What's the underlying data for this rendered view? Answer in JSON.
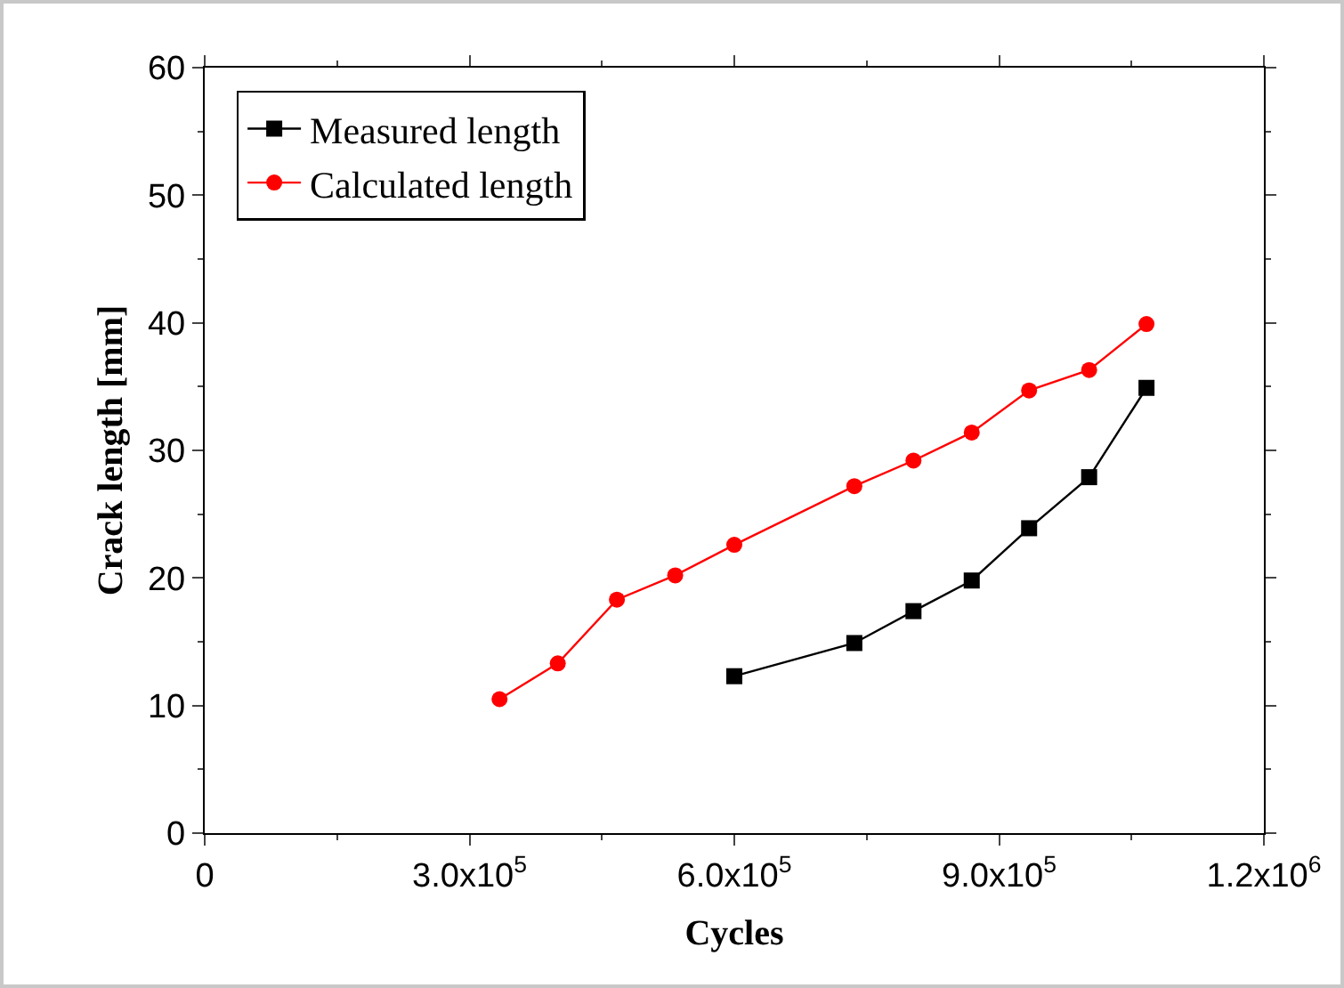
{
  "chart_data": {
    "type": "line",
    "xlabel": "Cycles",
    "ylabel": "Crack length [mm]",
    "xlim": [
      0,
      1200000
    ],
    "xticks": [
      0,
      {
        "value": 300000,
        "label": "3.0x10$^{5}$"
      },
      {
        "value": 600000,
        "label": "6.0x10$^{5}$"
      },
      {
        "value": 900000,
        "label": "9.0x10$^{5}$"
      },
      {
        "value": 1200000,
        "label": "1.2x10$^{6}$"
      }
    ],
    "ylim": [
      0,
      60
    ],
    "yticks": [
      0,
      10,
      20,
      30,
      40,
      50,
      60
    ],
    "grid": false,
    "legend": "top left",
    "series": [
      {
        "name": "Measured length",
        "color": "#000000",
        "marker": "square",
        "x": [
          600000,
          736000,
          803000,
          869000,
          934000,
          1002000,
          1067000
        ],
        "values": [
          12.3,
          14.9,
          17.4,
          19.8,
          23.9,
          27.9,
          34.9
        ]
      },
      {
        "name": "Calculated length",
        "color": "#ff0000",
        "marker": "circle",
        "x": [
          334000,
          400000,
          467000,
          533000,
          600000,
          736000,
          803000,
          869000,
          934000,
          1002000,
          1067000
        ],
        "values": [
          10.5,
          13.3,
          18.3,
          20.2,
          22.6,
          27.2,
          29.2,
          31.4,
          34.7,
          36.3,
          39.9
        ]
      }
    ]
  }
}
